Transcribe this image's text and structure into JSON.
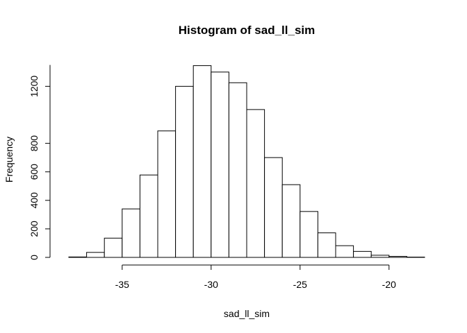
{
  "chart_data": {
    "type": "bar",
    "title": "Histogram of sad_ll_sim",
    "xlabel": "sad_ll_sim",
    "ylabel": "Frequency",
    "bin_edges": [
      -38,
      -37,
      -36,
      -35,
      -34,
      -33,
      -32,
      -31,
      -30,
      -29,
      -28,
      -27,
      -26,
      -25,
      -24,
      -23,
      -22,
      -21,
      -20,
      -19,
      -18
    ],
    "values": [
      3,
      35,
      135,
      340,
      578,
      887,
      1200,
      1345,
      1300,
      1225,
      1037,
      700,
      510,
      322,
      172,
      82,
      42,
      15,
      7,
      2
    ],
    "xlim": [
      -38,
      -18
    ],
    "ylim": [
      0,
      1350
    ],
    "x_ticks": [
      -35,
      -30,
      -25,
      -20
    ],
    "y_ticks": [
      0,
      200,
      400,
      600,
      800,
      1200
    ],
    "grid": false
  }
}
